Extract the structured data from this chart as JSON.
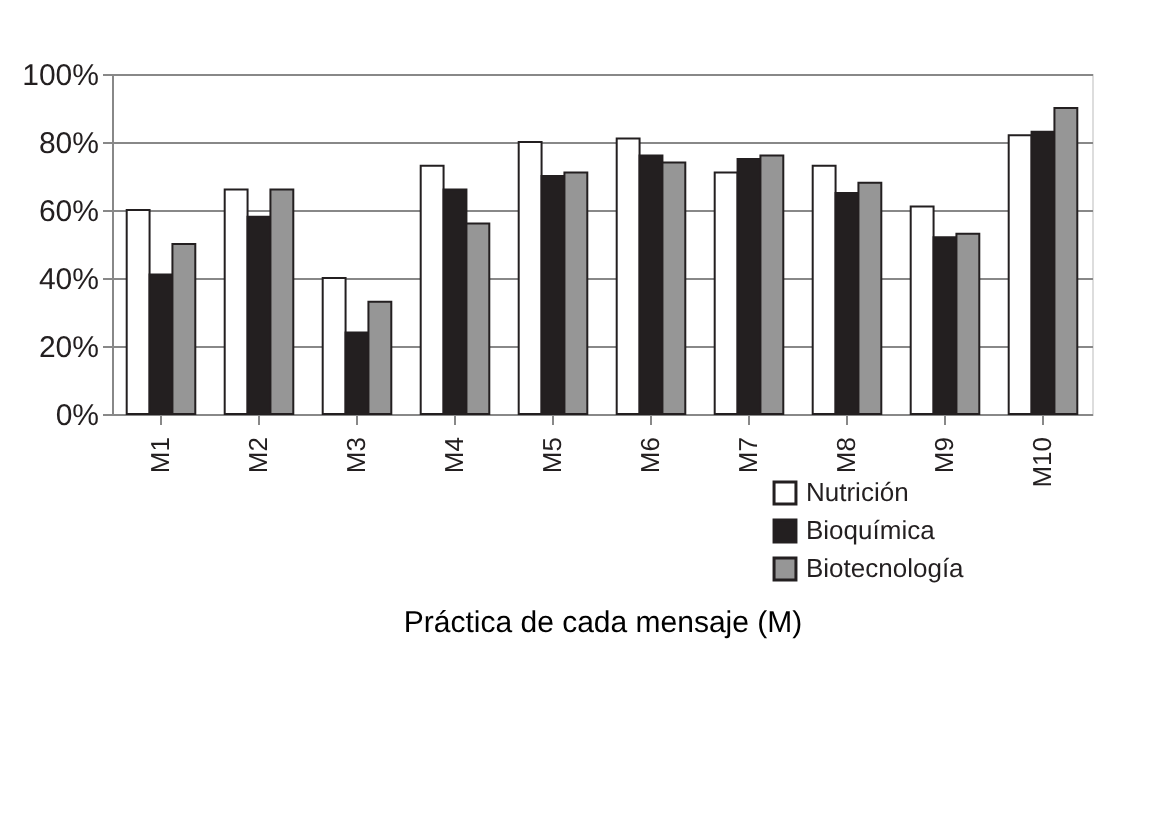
{
  "chart_data": {
    "type": "bar",
    "xlabel": "Práctica de cada mensaje (M)",
    "categories": [
      "M1",
      "M2",
      "M3",
      "M4",
      "M5",
      "M6",
      "M7",
      "M8",
      "M9",
      "M10"
    ],
    "series": [
      {
        "name": "Nutrición",
        "color": "#ffffff",
        "values": [
          60,
          66,
          40,
          73,
          80,
          81,
          71,
          73,
          61,
          82
        ]
      },
      {
        "name": "Bioquímica",
        "color": "#231f20",
        "values": [
          41,
          58,
          24,
          66,
          70,
          76,
          75,
          65,
          52,
          83
        ]
      },
      {
        "name": "Biotecnología",
        "color": "#969696",
        "values": [
          50,
          66,
          33,
          56,
          71,
          74,
          76,
          68,
          53,
          90
        ]
      }
    ],
    "ylim": [
      0,
      100
    ],
    "yticks": [
      {
        "value": 0,
        "label": "0%"
      },
      {
        "value": 20,
        "label": "20%"
      },
      {
        "value": 40,
        "label": "40%"
      },
      {
        "value": 60,
        "label": "60%"
      },
      {
        "value": 80,
        "label": "80%"
      },
      {
        "value": 100,
        "label": "100%"
      }
    ],
    "grid": "y",
    "legend": "bottom right"
  }
}
